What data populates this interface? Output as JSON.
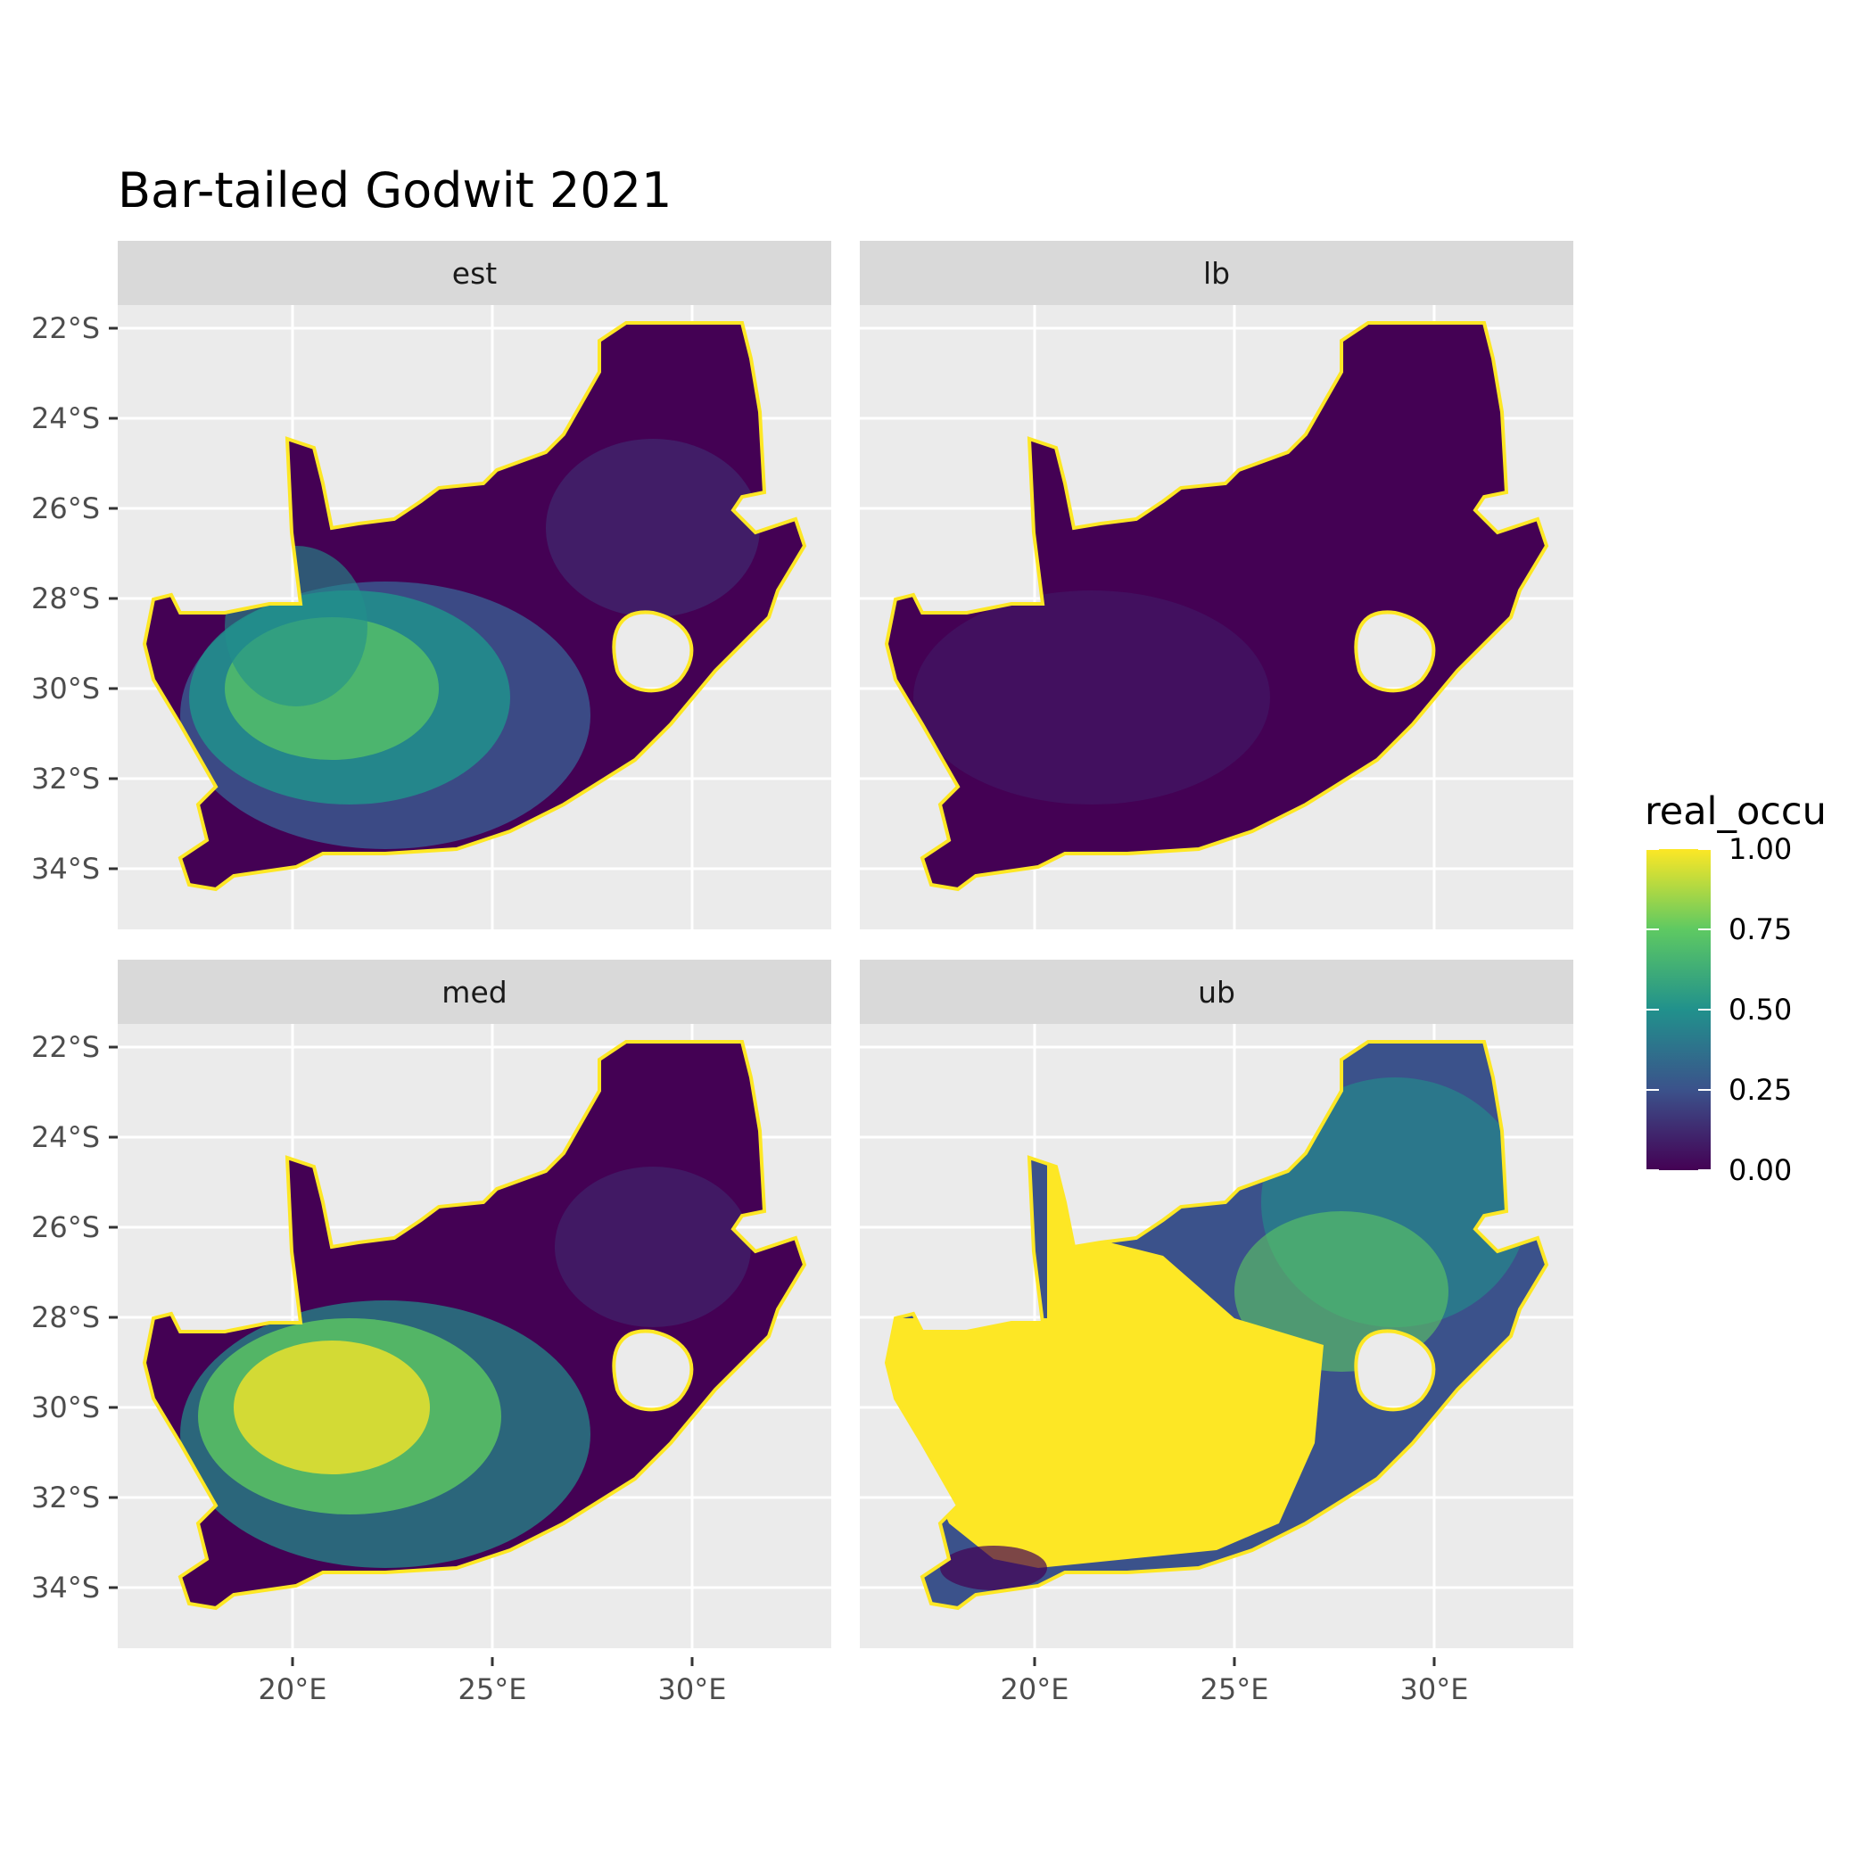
{
  "title": "Bar-tailed Godwit 2021",
  "panels": [
    {
      "label": "est"
    },
    {
      "label": "lb"
    },
    {
      "label": "med"
    },
    {
      "label": "ub"
    }
  ],
  "x_ticks": [
    "20°E",
    "25°E",
    "30°E"
  ],
  "y_ticks": [
    "22°S",
    "24°S",
    "26°S",
    "28°S",
    "30°S",
    "32°S",
    "34°S"
  ],
  "legend": {
    "title": "real_occu",
    "labels": [
      "1.00",
      "0.75",
      "0.50",
      "0.25",
      "0.00"
    ],
    "colors": [
      "#fde725",
      "#5ec962",
      "#21918c",
      "#3b528b",
      "#440154"
    ]
  },
  "colors": {
    "panel_bg": "#ebebeb",
    "strip_bg": "#d9d9d9",
    "grid": "#ffffff",
    "low": "#440154",
    "mid_low": "#3b528b",
    "mid": "#21918c",
    "mid_high": "#5ec962",
    "high": "#fde725"
  }
}
